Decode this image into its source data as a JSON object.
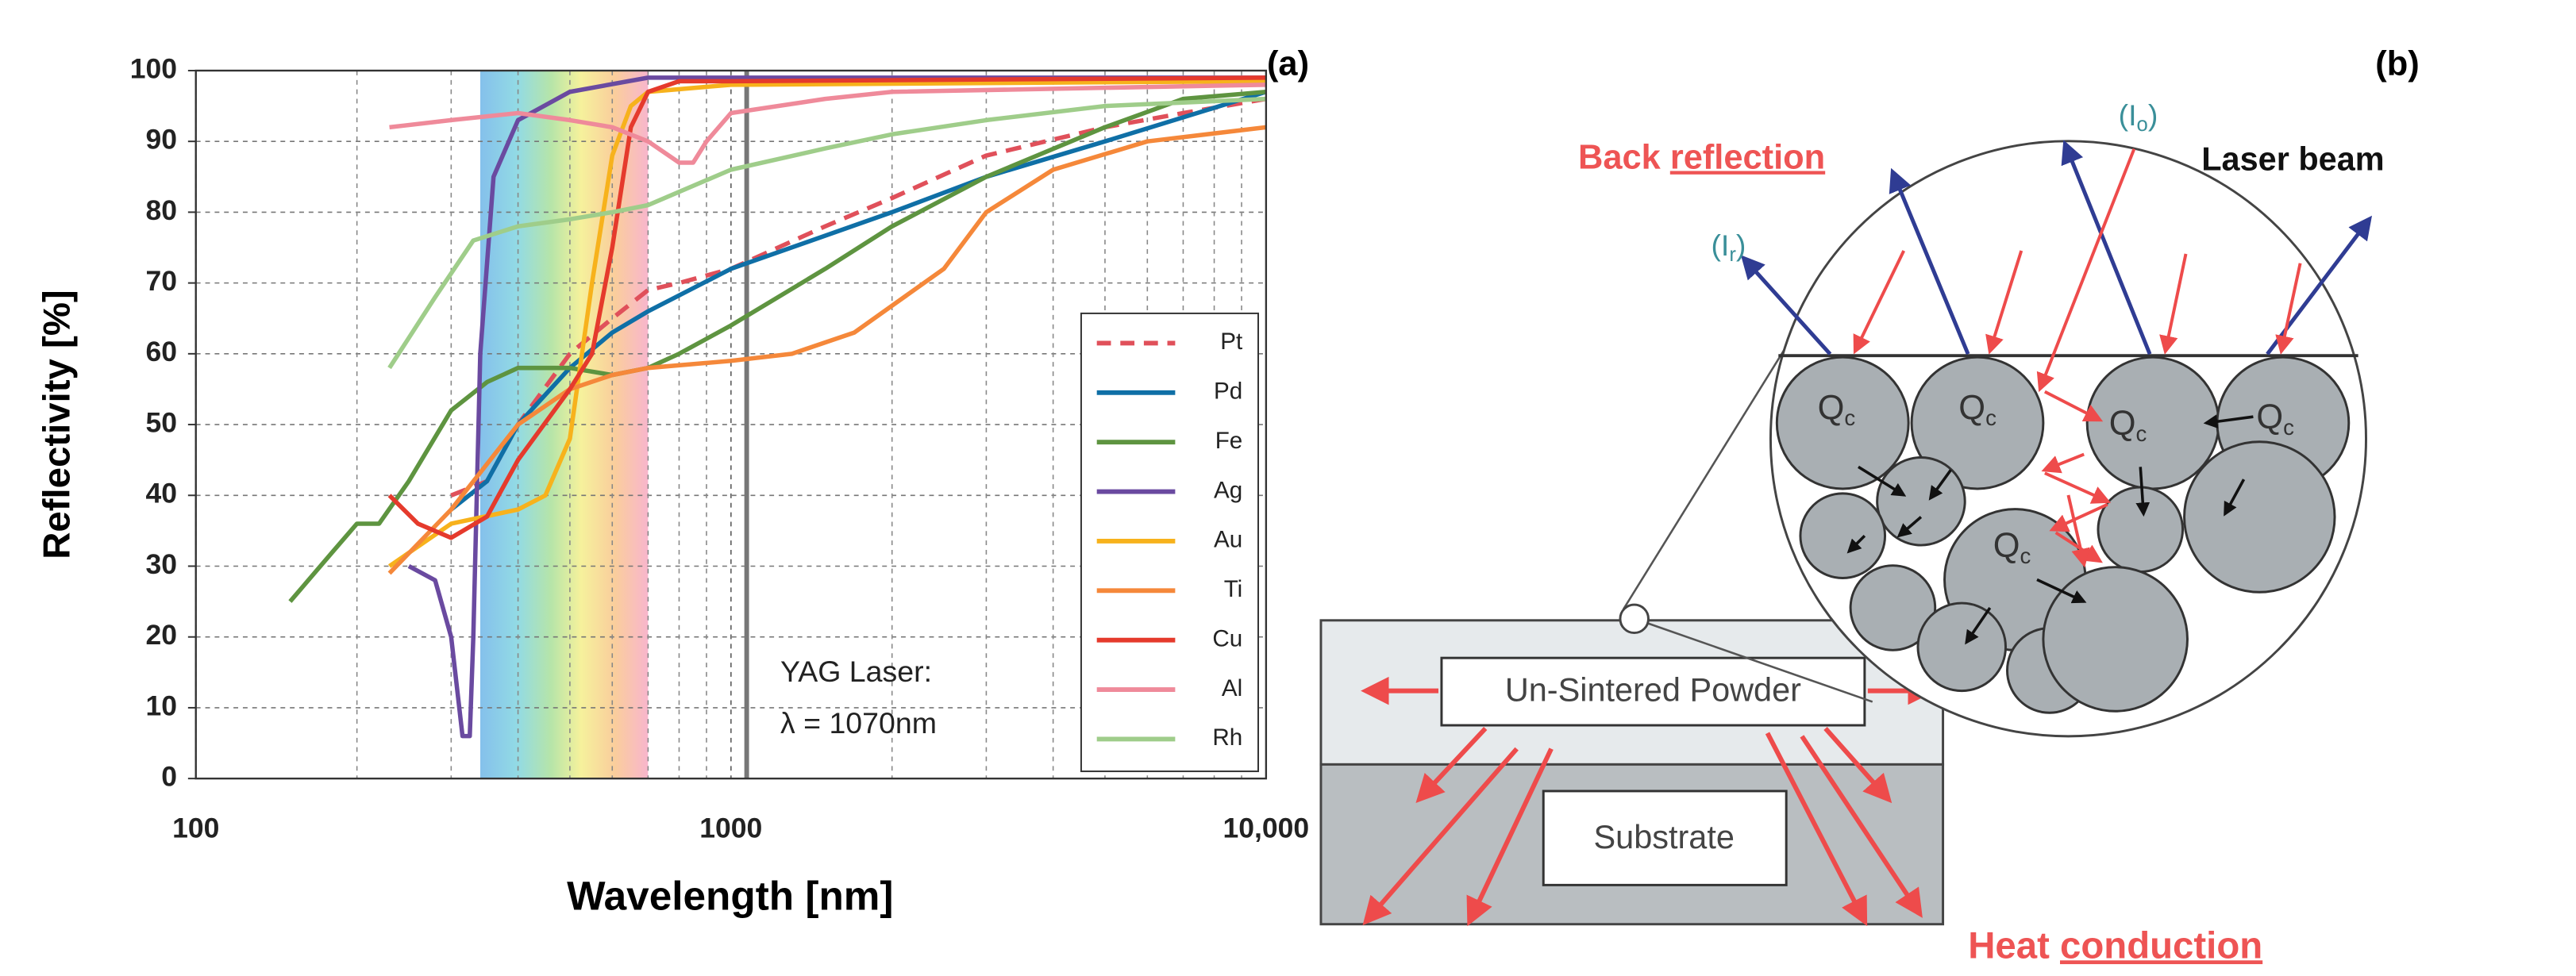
{
  "chart_data": {
    "type": "line",
    "panel_label": "(a)",
    "xlabel": "Wavelength [nm]",
    "ylabel": "Reflectivity [%]",
    "xscale": "log",
    "xlim": [
      100,
      10000
    ],
    "xticks": [
      100,
      1000,
      {
        "value": 10000,
        "label": "10,000"
      }
    ],
    "x_minor_grid": [
      200,
      300,
      400,
      500,
      600,
      700,
      800,
      900,
      2000,
      3000,
      4000,
      5000,
      6000,
      7000,
      8000,
      9000
    ],
    "ylim": [
      0,
      100
    ],
    "yticks": [
      0,
      10,
      20,
      30,
      40,
      50,
      60,
      70,
      80,
      90,
      100
    ],
    "grid": true,
    "highlight_band": [
      340,
      700
    ],
    "vline": 1070,
    "annotation": [
      "YAG Laser:",
      "λ = 1070nm"
    ],
    "legend": "right",
    "series": [
      {
        "name": "Pt",
        "color": "#e0505a",
        "dash": true,
        "x": [
          300,
          350,
          400,
          500,
          600,
          700,
          800,
          1000,
          1500,
          2000,
          3000,
          5000,
          7000,
          10000
        ],
        "values": [
          40,
          42,
          50,
          60,
          65,
          69,
          70,
          72,
          78,
          82,
          88,
          92,
          94,
          96
        ]
      },
      {
        "name": "Pd",
        "color": "#0f6fa6",
        "x": [
          300,
          350,
          400,
          500,
          600,
          700,
          1000,
          2000,
          3000,
          5000,
          10000
        ],
        "values": [
          38,
          42,
          50,
          58,
          63,
          66,
          72,
          80,
          85,
          90,
          97
        ]
      },
      {
        "name": "Fe",
        "color": "#5e9440",
        "x": [
          150,
          180,
          200,
          220,
          250,
          300,
          350,
          400,
          500,
          600,
          700,
          800,
          1000,
          1500,
          2000,
          3000,
          5000,
          7000,
          10000
        ],
        "values": [
          25,
          32,
          36,
          36,
          42,
          52,
          56,
          58,
          58,
          57,
          58,
          60,
          64,
          72,
          78,
          85,
          92,
          96,
          97
        ]
      },
      {
        "name": "Ag",
        "color": "#6a4aa0",
        "x": [
          250,
          280,
          300,
          315,
          325,
          330,
          340,
          360,
          400,
          500,
          700,
          1000,
          10000
        ],
        "values": [
          30,
          28,
          20,
          6,
          6,
          20,
          60,
          85,
          93,
          97,
          99,
          99,
          99
        ]
      },
      {
        "name": "Au",
        "color": "#f7b21c",
        "x": [
          230,
          300,
          400,
          450,
          500,
          550,
          600,
          650,
          700,
          1000,
          10000
        ],
        "values": [
          30,
          36,
          38,
          40,
          48,
          70,
          88,
          95,
          97,
          98,
          98.5
        ]
      },
      {
        "name": "Ti",
        "color": "#f5883a",
        "x": [
          230,
          300,
          400,
          500,
          600,
          700,
          1000,
          1300,
          1700,
          2500,
          3000,
          4000,
          6000,
          10000
        ],
        "values": [
          29,
          38,
          50,
          55,
          57,
          58,
          59,
          60,
          63,
          72,
          80,
          86,
          90,
          92
        ]
      },
      {
        "name": "Cu",
        "color": "#e53a2c",
        "x": [
          230,
          260,
          300,
          350,
          400,
          500,
          550,
          600,
          650,
          700,
          800,
          1000,
          10000
        ],
        "values": [
          40,
          36,
          34,
          37,
          45,
          55,
          60,
          75,
          92,
          97,
          98.5,
          98.5,
          99
        ]
      },
      {
        "name": "Al",
        "color": "#ef8a9a",
        "x": [
          230,
          300,
          400,
          500,
          600,
          700,
          800,
          850,
          900,
          1000,
          1500,
          2000,
          10000
        ],
        "values": [
          92,
          93,
          94,
          93,
          92,
          90,
          87,
          87,
          90,
          94,
          96,
          97,
          98
        ]
      },
      {
        "name": "Rh",
        "color": "#9fcd8a",
        "x": [
          230,
          280,
          330,
          400,
          500,
          600,
          700,
          1000,
          1500,
          2000,
          3000,
          5000,
          10000
        ],
        "values": [
          58,
          68,
          76,
          78,
          79,
          80,
          81,
          86,
          89,
          91,
          93,
          95,
          96
        ]
      }
    ]
  },
  "diagram": {
    "panel_label": "(b)",
    "back_reflection": [
      "Back ",
      "reflection"
    ],
    "incident_label": [
      "(I",
      "o",
      ")"
    ],
    "laser_beam": "Laser beam",
    "reflected_label": [
      "(I",
      "r",
      ")"
    ],
    "particle_label": [
      "Q",
      "c"
    ],
    "powder": "Un-Sintered Powder",
    "substrate": "Substrate",
    "heat_conduction": [
      "Heat ",
      "conduction"
    ]
  }
}
